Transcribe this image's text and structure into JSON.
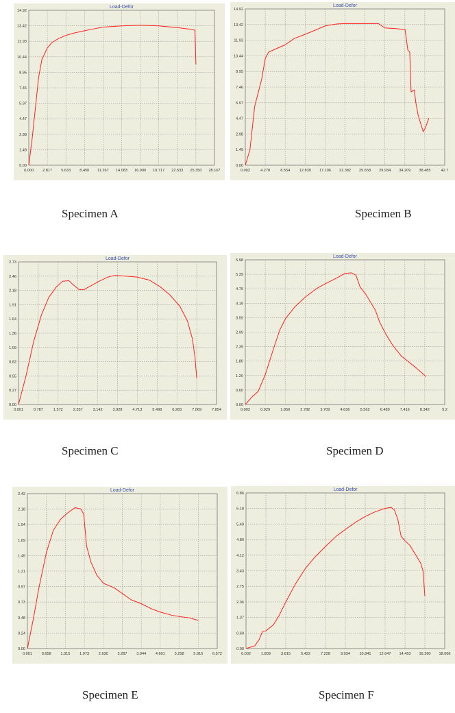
{
  "chart_data": [
    {
      "type": "line",
      "title": "Load-Defor",
      "caption": "Specimen A",
      "grid": true,
      "xlim": [
        0.0,
        28.167
      ],
      "ylim": [
        0.0,
        14.92
      ],
      "xticks": [
        "0.000",
        "2.817",
        "5.633",
        "8.450",
        "11.267",
        "14.083",
        "16.900",
        "19.717",
        "22.533",
        "25.350",
        "28.167"
      ],
      "yticks": [
        "0.00",
        "1.49",
        "2.98",
        "4.47",
        "5.97",
        "7.46",
        "8.95",
        "10.44",
        "11.93",
        "13.42",
        "14.92"
      ],
      "series": [
        {
          "color": "#ff2020",
          "points": [
            [
              0,
              0
            ],
            [
              0.5,
              2.5
            ],
            [
              1.0,
              5.5
            ],
            [
              1.5,
              8.5
            ],
            [
              2.0,
              10.2
            ],
            [
              2.817,
              11.3
            ],
            [
              3.5,
              11.8
            ],
            [
              4.5,
              12.2
            ],
            [
              5.633,
              12.5
            ],
            [
              7.0,
              12.75
            ],
            [
              8.45,
              12.95
            ],
            [
              10.0,
              13.15
            ],
            [
              11.267,
              13.3
            ],
            [
              14.083,
              13.42
            ],
            [
              16.9,
              13.48
            ],
            [
              19.717,
              13.42
            ],
            [
              22.533,
              13.25
            ],
            [
              24.5,
              13.1
            ],
            [
              25.2,
              13.0
            ],
            [
              25.35,
              9.7
            ]
          ]
        }
      ]
    },
    {
      "type": "line",
      "title": "Load-Defor",
      "caption": "Specimen B",
      "grid": true,
      "xlim": [
        0.002,
        42.7
      ],
      "ylim": [
        0.0,
        14.92
      ],
      "xticks": [
        "0.002",
        "4.278",
        "8.554",
        "12.830",
        "17.106",
        "21.382",
        "25.658",
        "29.934",
        "34.209",
        "38.485",
        "42.7"
      ],
      "yticks": [
        "0.00",
        "1.49",
        "2.98",
        "4.47",
        "5.97",
        "7.46",
        "8.95",
        "10.44",
        "11.93",
        "13.42",
        "14.92"
      ],
      "series": [
        {
          "color": "#ff2020",
          "points": [
            [
              0.002,
              0
            ],
            [
              1.0,
              1.5
            ],
            [
              2.0,
              5.6
            ],
            [
              3.5,
              8.2
            ],
            [
              4.278,
              10.2
            ],
            [
              5.0,
              10.8
            ],
            [
              6.5,
              11.1
            ],
            [
              8.554,
              11.5
            ],
            [
              10.5,
              12.1
            ],
            [
              12.83,
              12.5
            ],
            [
              15.0,
              12.9
            ],
            [
              17.106,
              13.3
            ],
            [
              19.5,
              13.48
            ],
            [
              21.382,
              13.52
            ],
            [
              25.658,
              13.52
            ],
            [
              28.5,
              13.52
            ],
            [
              29.934,
              13.1
            ],
            [
              32.0,
              13.05
            ],
            [
              34.209,
              12.95
            ],
            [
              34.8,
              11.0
            ],
            [
              35.2,
              10.8
            ],
            [
              35.5,
              7.0
            ],
            [
              36.2,
              7.2
            ],
            [
              36.5,
              6.0
            ],
            [
              37.0,
              4.8
            ],
            [
              37.6,
              3.9
            ],
            [
              38.1,
              3.2
            ],
            [
              38.6,
              3.6
            ],
            [
              39.3,
              4.5
            ]
          ]
        }
      ]
    },
    {
      "type": "line",
      "title": "Load-Defor",
      "caption": "Specimen C",
      "grid": true,
      "xlim": [
        0.001,
        7.854
      ],
      "ylim": [
        0.0,
        2.73
      ],
      "xticks": [
        "0.001",
        "0.787",
        "1.572",
        "2.357",
        "3.142",
        "3.928",
        "4.713",
        "5.498",
        "6.283",
        "7.069",
        "7.854"
      ],
      "yticks": [
        "0.00",
        "0.27",
        "0.55",
        "0.82",
        "1.09",
        "1.36",
        "1.64",
        "1.91",
        "2.18",
        "2.46",
        "2.73"
      ],
      "series": [
        {
          "color": "#ff2020",
          "points": [
            [
              0.001,
              0
            ],
            [
              0.3,
              0.55
            ],
            [
              0.6,
              1.2
            ],
            [
              0.9,
              1.7
            ],
            [
              1.2,
              2.05
            ],
            [
              1.5,
              2.25
            ],
            [
              1.75,
              2.36
            ],
            [
              2.0,
              2.37
            ],
            [
              2.2,
              2.28
            ],
            [
              2.4,
              2.2
            ],
            [
              2.6,
              2.2
            ],
            [
              2.9,
              2.28
            ],
            [
              3.2,
              2.36
            ],
            [
              3.55,
              2.44
            ],
            [
              3.8,
              2.47
            ],
            [
              4.2,
              2.46
            ],
            [
              4.7,
              2.44
            ],
            [
              5.2,
              2.38
            ],
            [
              5.6,
              2.26
            ],
            [
              6.0,
              2.1
            ],
            [
              6.4,
              1.88
            ],
            [
              6.7,
              1.6
            ],
            [
              6.9,
              1.25
            ],
            [
              7.0,
              0.9
            ],
            [
              7.069,
              0.5
            ]
          ]
        }
      ]
    },
    {
      "type": "line",
      "title": "Load-Defor",
      "caption": "Specimen D",
      "grid": true,
      "xlim": [
        0.002,
        9.2
      ],
      "ylim": [
        0.0,
        5.98
      ],
      "xticks": [
        "0.002",
        "0.929",
        "1.856",
        "2.782",
        "3.709",
        "4.636",
        "5.562",
        "6.489",
        "7.416",
        "8.342",
        "9.2"
      ],
      "yticks": [
        "0.00",
        "0.60",
        "1.20",
        "1.80",
        "2.39",
        "2.99",
        "3.59",
        "4.19",
        "4.79",
        "5.39",
        "5.98"
      ],
      "series": [
        {
          "color": "#ff2020",
          "points": [
            [
              0.002,
              0
            ],
            [
              0.3,
              0.3
            ],
            [
              0.6,
              0.55
            ],
            [
              0.929,
              1.25
            ],
            [
              1.3,
              2.3
            ],
            [
              1.6,
              3.1
            ],
            [
              1.856,
              3.55
            ],
            [
              2.3,
              4.05
            ],
            [
              2.782,
              4.45
            ],
            [
              3.3,
              4.8
            ],
            [
              3.709,
              5.0
            ],
            [
              4.2,
              5.22
            ],
            [
              4.6,
              5.42
            ],
            [
              4.9,
              5.44
            ],
            [
              5.1,
              5.35
            ],
            [
              5.3,
              4.85
            ],
            [
              5.562,
              4.55
            ],
            [
              6.0,
              3.9
            ],
            [
              6.2,
              3.4
            ],
            [
              6.489,
              2.9
            ],
            [
              6.8,
              2.45
            ],
            [
              7.2,
              2.0
            ],
            [
              7.416,
              1.85
            ],
            [
              7.9,
              1.5
            ],
            [
              8.342,
              1.15
            ]
          ]
        }
      ]
    },
    {
      "type": "line",
      "title": "Load-Defor",
      "caption": "Specimen E",
      "grid": true,
      "xlim": [
        0.001,
        6.572
      ],
      "ylim": [
        0.0,
        2.42
      ],
      "xticks": [
        "0.001",
        "0.658",
        "1.315",
        "1.973",
        "2.630",
        "3.287",
        "3.944",
        "4.601",
        "5.258",
        "5.915",
        "6.572"
      ],
      "yticks": [
        "0.00",
        "0.24",
        "0.48",
        "0.73",
        "0.97",
        "1.21",
        "1.45",
        "1.69",
        "1.94",
        "2.18",
        "2.42"
      ],
      "series": [
        {
          "color": "#ff2020",
          "points": [
            [
              0.001,
              0
            ],
            [
              0.2,
              0.45
            ],
            [
              0.4,
              0.95
            ],
            [
              0.658,
              1.5
            ],
            [
              0.9,
              1.85
            ],
            [
              1.15,
              2.02
            ],
            [
              1.4,
              2.12
            ],
            [
              1.65,
              2.2
            ],
            [
              1.85,
              2.18
            ],
            [
              1.95,
              2.1
            ],
            [
              2.05,
              1.6
            ],
            [
              2.2,
              1.35
            ],
            [
              2.4,
              1.15
            ],
            [
              2.63,
              1.02
            ],
            [
              3.0,
              0.95
            ],
            [
              3.287,
              0.86
            ],
            [
              3.6,
              0.76
            ],
            [
              3.944,
              0.7
            ],
            [
              4.3,
              0.62
            ],
            [
              4.601,
              0.57
            ],
            [
              5.0,
              0.52
            ],
            [
              5.258,
              0.5
            ],
            [
              5.6,
              0.48
            ],
            [
              5.915,
              0.44
            ]
          ]
        }
      ]
    },
    {
      "type": "line",
      "title": "Load-Defor",
      "caption": "Specimen F",
      "grid": true,
      "xlim": [
        0.002,
        18.066
      ],
      "ylim": [
        0.0,
        6.86
      ],
      "xticks": [
        "0.002",
        "1.809",
        "3.615",
        "5.422",
        "7.228",
        "9.034",
        "10.841",
        "12.647",
        "14.453",
        "16.260",
        "18.066"
      ],
      "yticks": [
        "0.00",
        "0.69",
        "1.37",
        "2.06",
        "2.75",
        "3.43",
        "4.12",
        "4.80",
        "5.49",
        "6.18",
        "6.86"
      ],
      "series": [
        {
          "color": "#ff2020",
          "points": [
            [
              0.002,
              0
            ],
            [
              0.8,
              0.12
            ],
            [
              1.2,
              0.4
            ],
            [
              1.5,
              0.75
            ],
            [
              1.809,
              0.78
            ],
            [
              2.5,
              1.05
            ],
            [
              3.0,
              1.45
            ],
            [
              3.615,
              2.05
            ],
            [
              4.5,
              2.85
            ],
            [
              5.422,
              3.55
            ],
            [
              6.3,
              4.05
            ],
            [
              7.228,
              4.5
            ],
            [
              8.2,
              4.95
            ],
            [
              9.034,
              5.25
            ],
            [
              10.0,
              5.58
            ],
            [
              10.841,
              5.82
            ],
            [
              11.7,
              6.02
            ],
            [
              12.647,
              6.18
            ],
            [
              13.2,
              6.22
            ],
            [
              13.5,
              6.1
            ],
            [
              13.8,
              5.7
            ],
            [
              14.1,
              4.95
            ],
            [
              14.453,
              4.75
            ],
            [
              14.9,
              4.55
            ],
            [
              15.4,
              4.15
            ],
            [
              15.9,
              3.75
            ],
            [
              16.1,
              3.4
            ],
            [
              16.26,
              2.3
            ]
          ]
        }
      ]
    }
  ]
}
